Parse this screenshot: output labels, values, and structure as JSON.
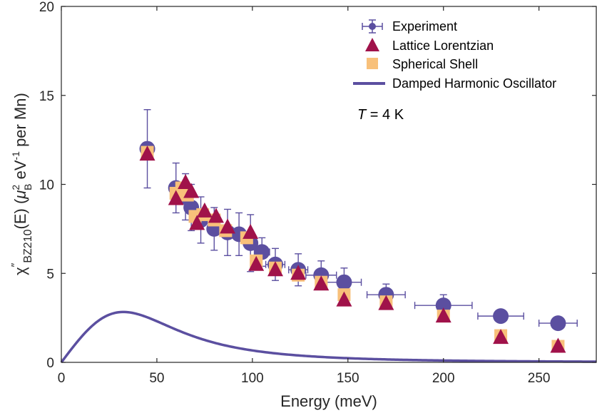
{
  "chart_data": {
    "type": "scatter",
    "xlabel": "Energy (meV)",
    "ylabel": {
      "chi": "χ",
      "prime": "″",
      "sub": "BZ210",
      "mid": "(E) (",
      "mu": "μ",
      "mu_sup": "2",
      "mu_sub": "B",
      "ev": " eV",
      "ev_sup": "-1",
      "tail": " per Mn)"
    },
    "xlim": [
      0,
      280
    ],
    "ylim": [
      0,
      20
    ],
    "xticks": [
      0,
      50,
      100,
      150,
      200,
      250
    ],
    "yticks": [
      0,
      5,
      10,
      15,
      20
    ],
    "annotation": {
      "T": "T",
      "rest": " = 4 K"
    },
    "legend_position": "top-right",
    "colors": {
      "experiment": "#5b4fa0",
      "lattice": "#a0124a",
      "shell": "#f8c07a",
      "dho": "#5b4fa0"
    },
    "series": [
      {
        "name": "Experiment",
        "marker": "circle-errorbar",
        "x": [
          45,
          60,
          65,
          68,
          73,
          80,
          87,
          93,
          99,
          105,
          112,
          124,
          136,
          148,
          170,
          200,
          230,
          260
        ],
        "y": [
          12.0,
          9.8,
          9.3,
          8.7,
          8.0,
          7.5,
          7.3,
          7.2,
          6.7,
          6.2,
          5.5,
          5.2,
          4.9,
          4.5,
          3.8,
          3.2,
          2.6,
          2.2
        ],
        "yerr": [
          2.2,
          1.4,
          1.3,
          1.3,
          1.3,
          1.2,
          1.3,
          1.2,
          1.6,
          0.8,
          0.9,
          0.9,
          0.8,
          0.8,
          0.6,
          0.6,
          0.3,
          0.3
        ],
        "xerr": [
          3,
          3,
          3,
          3,
          3,
          3,
          3,
          3,
          3,
          4,
          5,
          5,
          8,
          9,
          10,
          15,
          12,
          10
        ]
      },
      {
        "name": "Lattice Lorentzian",
        "marker": "triangle",
        "x": [
          45,
          60,
          65,
          68,
          71,
          75,
          81,
          87,
          99,
          102,
          112,
          124,
          136,
          148,
          170,
          200,
          230,
          260
        ],
        "y": [
          11.7,
          9.2,
          10.1,
          9.6,
          7.8,
          8.5,
          8.2,
          7.6,
          7.3,
          5.5,
          5.2,
          5.0,
          4.4,
          3.5,
          3.3,
          2.6,
          1.4,
          0.9
        ],
        "sx": [
          45,
          60,
          63,
          66,
          70,
          74,
          80,
          86,
          97,
          102,
          112,
          124,
          136,
          148,
          170,
          200,
          230,
          260
        ],
        "sy": [
          11.8,
          9.5,
          9.8,
          9.4,
          8.2,
          8.3,
          8.0,
          7.4,
          7.0,
          5.7,
          5.3,
          4.9,
          4.5,
          3.8,
          3.4,
          2.6,
          1.5,
          0.9
        ]
      },
      {
        "name": "Spherical Shell",
        "marker": "square"
      },
      {
        "name": "Damped Harmonic Oscillator",
        "marker": "line",
        "model": {
          "A": 4.0656,
          "E0": 50,
          "gamma": 88
        }
      }
    ]
  }
}
